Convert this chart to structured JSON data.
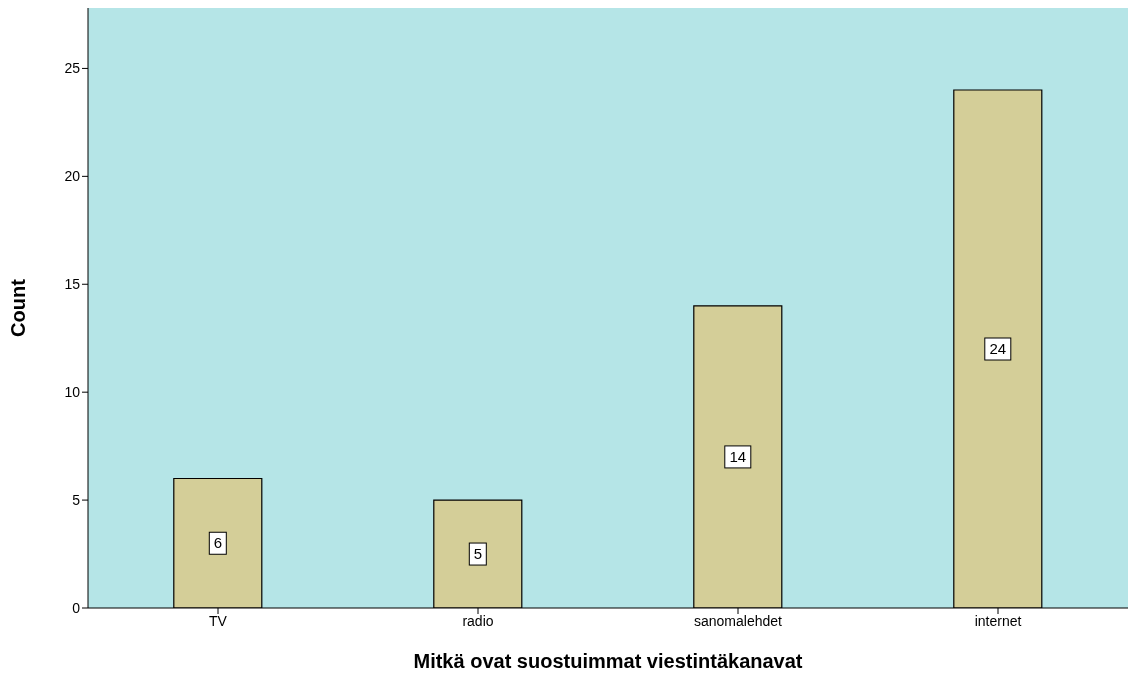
{
  "chart_data": {
    "type": "bar",
    "xlabel": "Mitkä ovat suostuimmat viestintäkanavat",
    "ylabel": "Count",
    "categories": [
      "TV",
      "radio",
      "sanomalehdet",
      "internet"
    ],
    "values": [
      6,
      5,
      14,
      24
    ],
    "color": "#d4ce98",
    "ylim": [
      0,
      27.8
    ],
    "yticks": [
      0,
      5,
      10,
      15,
      20,
      25
    ],
    "grid": false,
    "data_labels": true
  }
}
